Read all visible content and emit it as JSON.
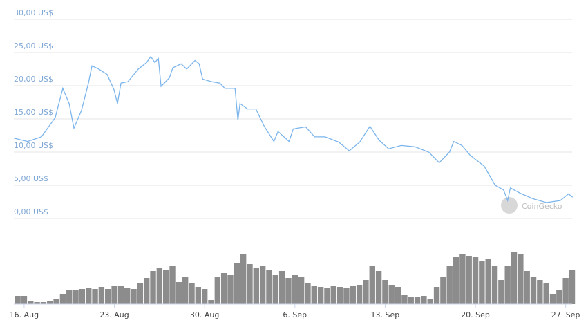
{
  "chart_data": [
    {
      "type": "line",
      "watermark": "CoinGecko",
      "color": "#7cb5ec",
      "grid": true,
      "x": [
        -0.8,
        0.27,
        1.34,
        2.41,
        3.0,
        3.49,
        3.86,
        4.45,
        4.99,
        5.26,
        5.79,
        6.44,
        6.97,
        7.24,
        7.51,
        8.05,
        8.85,
        9.5,
        9.82,
        10.14,
        10.41,
        10.62,
        11.27,
        11.53,
        12.18,
        12.61,
        13.25,
        13.57,
        13.84,
        14.54,
        15.18,
        15.56,
        16.36,
        16.58,
        16.74,
        17.33,
        17.97,
        18.62,
        19.37,
        19.69,
        20.55,
        20.87,
        21.83,
        22.53,
        23.34,
        24.41,
        25.21,
        26.02,
        26.82,
        27.52,
        28.27,
        29.24,
        30.31,
        31.38,
        32.19,
        32.99,
        33.32,
        33.96,
        34.6,
        35.68,
        36.53,
        37.18,
        37.5,
        37.71,
        38.47,
        39.43,
        40.5,
        41.58,
        42.22,
        42.54
      ],
      "values": [
        12.1,
        11.6,
        12.3,
        15.2,
        19.6,
        17.3,
        13.6,
        16.3,
        20.4,
        23.0,
        22.5,
        21.7,
        19.4,
        17.3,
        20.4,
        20.6,
        22.5,
        23.5,
        24.4,
        23.5,
        24.1,
        19.9,
        21.2,
        22.7,
        23.3,
        22.5,
        23.8,
        23.3,
        21.0,
        20.6,
        20.4,
        19.6,
        19.6,
        14.8,
        17.3,
        16.5,
        16.5,
        13.9,
        11.6,
        13.1,
        11.6,
        13.5,
        13.8,
        12.3,
        12.3,
        11.5,
        10.2,
        11.5,
        13.9,
        11.8,
        10.5,
        11.0,
        10.8,
        10.0,
        8.4,
        10.0,
        11.6,
        11.0,
        9.5,
        7.9,
        5.0,
        4.3,
        2.7,
        4.6,
        3.8,
        3.0,
        2.4,
        2.7,
        3.7,
        3.2
      ],
      "xlim": [
        -0.8,
        42.5
      ],
      "ylim": [
        0,
        30
      ],
      "yticks": [
        {
          "value": 0,
          "label": "0,00 US$"
        },
        {
          "value": 5,
          "label": "5,00 US$"
        },
        {
          "value": 10,
          "label": "10,00 US$"
        },
        {
          "value": 15,
          "label": "15,00 US$"
        },
        {
          "value": 20,
          "label": "20,00 US$"
        },
        {
          "value": 25,
          "label": "25,00 US$"
        },
        {
          "value": 30,
          "label": "30,00 US$"
        }
      ]
    },
    {
      "type": "bar",
      "color": "#8c8c8c",
      "x": [
        -0.5,
        0,
        0.5,
        1,
        1.5,
        2,
        2.5,
        3,
        3.5,
        4,
        4.5,
        5,
        5.5,
        6,
        6.5,
        7,
        7.5,
        8,
        8.5,
        9,
        9.5,
        10,
        10.5,
        11,
        11.5,
        12,
        12.5,
        13,
        13.5,
        14,
        14.5,
        15,
        15.5,
        16,
        16.5,
        17,
        17.5,
        18,
        18.5,
        19,
        19.5,
        20,
        20.5,
        21,
        21.5,
        22,
        22.5,
        23,
        23.5,
        24,
        24.5,
        25,
        25.5,
        26,
        26.5,
        27,
        27.5,
        28,
        28.5,
        29,
        29.5,
        30,
        30.5,
        31,
        31.5,
        32,
        32.5,
        33,
        33.5,
        34,
        34.5,
        35,
        35.5,
        36,
        36.5,
        37,
        37.5,
        38,
        38.5,
        39,
        39.5,
        40,
        40.5,
        41,
        41.5,
        42,
        42.5
      ],
      "values": [
        12,
        12,
        5,
        3,
        3,
        4,
        8,
        15,
        20,
        20,
        22,
        24,
        22,
        25,
        22,
        26,
        27,
        23,
        22,
        30,
        38,
        48,
        52,
        50,
        55,
        32,
        40,
        30,
        25,
        22,
        6,
        40,
        45,
        42,
        60,
        72,
        58,
        52,
        55,
        50,
        42,
        48,
        38,
        42,
        40,
        30,
        26,
        25,
        24,
        26,
        25,
        24,
        26,
        28,
        35,
        55,
        48,
        35,
        28,
        25,
        14,
        10,
        10,
        12,
        8,
        25,
        40,
        55,
        68,
        72,
        70,
        68,
        62,
        65,
        55,
        35,
        55,
        75,
        72,
        48,
        40,
        35,
        30,
        15,
        20,
        38,
        50
      ],
      "xlim": [
        -0.8,
        42.5
      ],
      "ylim": [
        0,
        100
      ],
      "xticks": [
        {
          "value": 0,
          "label": "16. Aug"
        },
        {
          "value": 7,
          "label": "23. Aug"
        },
        {
          "value": 14,
          "label": "30. Aug"
        },
        {
          "value": 21,
          "label": "6. Sep"
        },
        {
          "value": 28,
          "label": "13. Sep"
        },
        {
          "value": 35,
          "label": "20. Sep"
        },
        {
          "value": 42,
          "label": "27. Sep"
        }
      ]
    }
  ]
}
